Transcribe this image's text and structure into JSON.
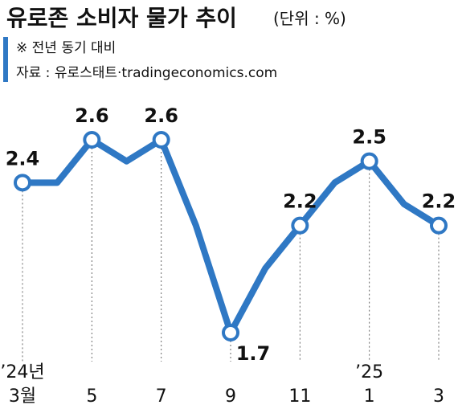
{
  "chart_data": {
    "type": "line",
    "title": "유로존 소비자 물가 추이",
    "subtitle": "(단위 : %)",
    "note": "※ 전년 동기 대비",
    "source": "자료 : 유로스태트·tradingeconomics.com",
    "categories": [
      "3월",
      null,
      "5",
      null,
      "7",
      null,
      "9",
      null,
      "11",
      null,
      "1",
      null,
      "3"
    ],
    "category_years": [
      "’24년",
      null,
      null,
      null,
      null,
      null,
      null,
      null,
      null,
      null,
      "’25",
      null,
      null
    ],
    "series": [
      {
        "color": "#2f78c4",
        "values": [
          2.4,
          2.4,
          2.6,
          2.5,
          2.6,
          2.2,
          1.7,
          2.0,
          2.2,
          2.4,
          2.5,
          2.3,
          2.2
        ],
        "value_labels": [
          "2.4",
          null,
          "2.6",
          null,
          "2.6",
          null,
          "1.7",
          null,
          "2.2",
          null,
          "2.5",
          null,
          "2.2"
        ]
      }
    ]
  }
}
